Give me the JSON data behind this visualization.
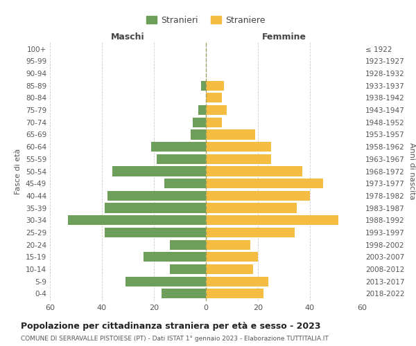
{
  "age_groups": [
    "0-4",
    "5-9",
    "10-14",
    "15-19",
    "20-24",
    "25-29",
    "30-34",
    "35-39",
    "40-44",
    "45-49",
    "50-54",
    "55-59",
    "60-64",
    "65-69",
    "70-74",
    "75-79",
    "80-84",
    "85-89",
    "90-94",
    "95-99",
    "100+"
  ],
  "birth_years": [
    "2018-2022",
    "2013-2017",
    "2008-2012",
    "2003-2007",
    "1998-2002",
    "1993-1997",
    "1988-1992",
    "1983-1987",
    "1978-1982",
    "1973-1977",
    "1968-1972",
    "1963-1967",
    "1958-1962",
    "1953-1957",
    "1948-1952",
    "1943-1947",
    "1938-1942",
    "1933-1937",
    "1928-1932",
    "1923-1927",
    "≤ 1922"
  ],
  "males": [
    17,
    31,
    14,
    24,
    14,
    39,
    53,
    39,
    38,
    16,
    36,
    19,
    21,
    6,
    5,
    3,
    0,
    2,
    0,
    0,
    0
  ],
  "females": [
    22,
    24,
    18,
    20,
    17,
    34,
    51,
    35,
    40,
    45,
    37,
    25,
    25,
    19,
    6,
    8,
    6,
    7,
    0,
    0,
    0
  ],
  "male_color": "#6d9e5a",
  "female_color": "#f5bc42",
  "background_color": "#ffffff",
  "grid_color": "#cccccc",
  "title": "Popolazione per cittadinanza straniera per età e sesso - 2023",
  "subtitle": "COMUNE DI SERRAVALLE PISTOIESE (PT) - Dati ISTAT 1° gennaio 2023 - Elaborazione TUTTITALIA.IT",
  "xlabel_left": "Maschi",
  "xlabel_right": "Femmine",
  "ylabel_left": "Fasce di età",
  "ylabel_right": "Anni di nascita",
  "legend_males": "Stranieri",
  "legend_females": "Straniere",
  "xlim": 60,
  "bar_height": 0.8
}
